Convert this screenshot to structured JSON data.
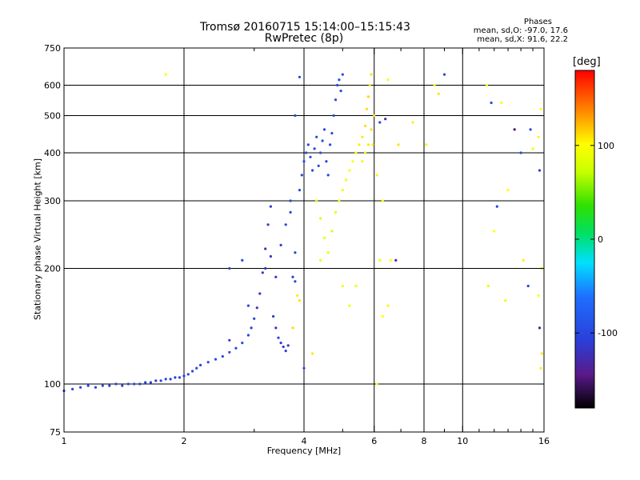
{
  "title": {
    "line1": "Tromsø 20160715 15:14:00–15:15:43",
    "line2": "RwPretec (8p)"
  },
  "phase_info": {
    "heading": "Phases",
    "o_line": "mean, sd,O:  -97.0, 17.6",
    "x_line": "mean, sd,X:  91.6, 22.2"
  },
  "colorbar": {
    "unit": "[deg]",
    "range": [
      -180,
      180
    ],
    "ticks": [
      100,
      0,
      -100
    ],
    "tick_labels": [
      "100",
      "0",
      "-100"
    ]
  },
  "chart_data": {
    "type": "scatter",
    "title": "Tromsø 20160715 15:14:00–15:15:43",
    "subtitle": "RwPretec (8p)",
    "xlabel": "Frequency [MHz]",
    "ylabel": "Stationary phase Virtual Height [km]",
    "xscale": "log",
    "yscale": "log",
    "xlim": [
      1,
      16
    ],
    "ylim": [
      75,
      750
    ],
    "x_ticks": [
      1,
      2,
      4,
      6,
      8,
      10,
      16
    ],
    "x_tick_labels": [
      "1",
      "2",
      "4",
      "6",
      "8",
      "10",
      "16"
    ],
    "x_minor_ticks": [
      3,
      5,
      7,
      9,
      11,
      12,
      13,
      14,
      15
    ],
    "y_ticks": [
      75,
      100,
      200,
      300,
      400,
      500,
      600,
      750
    ],
    "y_tick_labels": [
      "75",
      "100",
      "200",
      "300",
      "400",
      "500",
      "600",
      "750"
    ],
    "grid": true,
    "legend": "colorbar-right",
    "series": [
      {
        "points": [
          [
            1.0,
            96,
            -105
          ],
          [
            1.05,
            97,
            -100
          ],
          [
            1.1,
            98,
            -108
          ],
          [
            1.15,
            99,
            -102
          ],
          [
            1.2,
            98,
            -106
          ],
          [
            1.25,
            99,
            -104
          ],
          [
            1.3,
            99,
            -110
          ],
          [
            1.35,
            100,
            -103
          ],
          [
            1.4,
            99,
            -107
          ],
          [
            1.45,
            100,
            -101
          ],
          [
            1.5,
            100,
            -105
          ],
          [
            1.55,
            100,
            -108
          ],
          [
            1.6,
            101,
            -102
          ],
          [
            1.65,
            101,
            -106
          ],
          [
            1.7,
            102,
            -110
          ],
          [
            1.75,
            102,
            -104
          ],
          [
            1.8,
            103,
            -100
          ],
          [
            1.85,
            103,
            -106
          ],
          [
            1.9,
            104,
            -108
          ],
          [
            1.95,
            104,
            -102
          ],
          [
            2.0,
            105,
            -105
          ],
          [
            2.05,
            106,
            -98
          ],
          [
            2.1,
            108,
            -96
          ],
          [
            2.15,
            110,
            -100
          ],
          [
            2.2,
            112,
            -102
          ],
          [
            2.3,
            114,
            -98
          ],
          [
            2.4,
            116,
            -95
          ],
          [
            2.5,
            118,
            -100
          ],
          [
            2.6,
            121,
            -97
          ],
          [
            2.7,
            124,
            -99
          ],
          [
            2.8,
            128,
            -96
          ],
          [
            2.9,
            134,
            -102
          ],
          [
            2.95,
            140,
            -110
          ],
          [
            3.0,
            148,
            -112
          ],
          [
            3.05,
            158,
            -115
          ],
          [
            3.1,
            172,
            -118
          ],
          [
            3.15,
            195,
            -120
          ],
          [
            3.2,
            225,
            -118
          ],
          [
            3.25,
            260,
            -116
          ],
          [
            3.3,
            290,
            -114
          ],
          [
            3.35,
            150,
            -110
          ],
          [
            3.4,
            140,
            -112
          ],
          [
            3.45,
            132,
            -108
          ],
          [
            3.5,
            128,
            -110
          ],
          [
            3.55,
            125,
            -106
          ],
          [
            3.6,
            122,
            -108
          ],
          [
            3.65,
            126,
            -110
          ],
          [
            3.2,
            200,
            -118
          ],
          [
            3.3,
            215,
            -116
          ],
          [
            3.4,
            190,
            -114
          ],
          [
            3.5,
            230,
            -110
          ],
          [
            3.6,
            260,
            -106
          ],
          [
            3.7,
            280,
            -100
          ],
          [
            3.7,
            300,
            -102
          ],
          [
            3.75,
            190,
            -110
          ],
          [
            3.8,
            185,
            -112
          ],
          [
            3.8,
            220,
            -104
          ],
          [
            3.9,
            320,
            -100
          ],
          [
            3.95,
            350,
            -98
          ],
          [
            4.0,
            380,
            -100
          ],
          [
            4.05,
            400,
            -102
          ],
          [
            4.1,
            420,
            -98
          ],
          [
            4.15,
            390,
            -100
          ],
          [
            4.2,
            360,
            -104
          ],
          [
            4.25,
            410,
            -100
          ],
          [
            4.3,
            440,
            -96
          ],
          [
            4.35,
            370,
            -100
          ],
          [
            4.4,
            400,
            -98
          ],
          [
            4.45,
            430,
            -96
          ],
          [
            4.5,
            460,
            -100
          ],
          [
            4.55,
            380,
            -102
          ],
          [
            4.6,
            350,
            -98
          ],
          [
            4.65,
            420,
            -100
          ],
          [
            4.7,
            450,
            -96
          ],
          [
            4.75,
            500,
            -98
          ],
          [
            4.8,
            550,
            -100
          ],
          [
            4.85,
            600,
            -102
          ],
          [
            4.9,
            620,
            -100
          ],
          [
            4.95,
            580,
            -98
          ],
          [
            5.0,
            640,
            -100
          ],
          [
            4.0,
            110,
            -96
          ],
          [
            4.3,
            300,
            80
          ],
          [
            4.4,
            270,
            85
          ],
          [
            4.5,
            240,
            90
          ],
          [
            4.6,
            220,
            88
          ],
          [
            4.7,
            250,
            82
          ],
          [
            4.8,
            280,
            86
          ],
          [
            4.9,
            300,
            90
          ],
          [
            5.0,
            320,
            92
          ],
          [
            5.1,
            340,
            94
          ],
          [
            5.2,
            360,
            98
          ],
          [
            5.3,
            380,
            100
          ],
          [
            5.4,
            400,
            104
          ],
          [
            5.5,
            420,
            106
          ],
          [
            5.6,
            440,
            108
          ],
          [
            5.7,
            470,
            110
          ],
          [
            5.75,
            520,
            112
          ],
          [
            5.8,
            560,
            114
          ],
          [
            5.85,
            600,
            112
          ],
          [
            5.9,
            640,
            110
          ],
          [
            5.6,
            380,
            104
          ],
          [
            5.7,
            400,
            106
          ],
          [
            5.8,
            420,
            108
          ],
          [
            5.9,
            460,
            110
          ],
          [
            6.0,
            500,
            112
          ],
          [
            5.95,
            420,
            104
          ],
          [
            6.1,
            350,
            104
          ],
          [
            1.8,
            640,
            100
          ],
          [
            6.5,
            620,
            102
          ],
          [
            8.5,
            600,
            104
          ],
          [
            9.0,
            640,
            -100
          ],
          [
            8.7,
            570,
            110
          ],
          [
            11.5,
            600,
            96
          ],
          [
            11.8,
            540,
            -102
          ],
          [
            12.5,
            540,
            102
          ],
          [
            13.5,
            460,
            -150
          ],
          [
            14.8,
            460,
            -100
          ],
          [
            15.5,
            440,
            104
          ],
          [
            15.6,
            360,
            -110
          ],
          [
            15.7,
            520,
            100
          ],
          [
            14.0,
            400,
            -100
          ],
          [
            15.0,
            410,
            96
          ],
          [
            13.0,
            320,
            102
          ],
          [
            12.2,
            290,
            -104
          ],
          [
            11.6,
            180,
            90
          ],
          [
            12.8,
            165,
            92
          ],
          [
            14.6,
            180,
            -100
          ],
          [
            15.8,
            200,
            104
          ],
          [
            15.5,
            170,
            100
          ],
          [
            15.6,
            140,
            -140
          ],
          [
            15.7,
            110,
            104
          ],
          [
            15.8,
            120,
            106
          ],
          [
            14.2,
            210,
            106
          ],
          [
            12.0,
            250,
            100
          ],
          [
            6.3,
            300,
            98
          ],
          [
            6.6,
            210,
            100
          ],
          [
            6.2,
            210,
            92
          ],
          [
            6.8,
            210,
            -130
          ],
          [
            6.5,
            160,
            104
          ],
          [
            6.3,
            150,
            100
          ],
          [
            6.1,
            100,
            104
          ],
          [
            5.4,
            180,
            92
          ],
          [
            5.2,
            160,
            94
          ],
          [
            5.0,
            180,
            96
          ],
          [
            4.4,
            210,
            88
          ],
          [
            3.85,
            170,
            106
          ],
          [
            3.9,
            165,
            110
          ],
          [
            3.75,
            140,
            112
          ],
          [
            4.2,
            120,
            108
          ],
          [
            2.6,
            200,
            -100
          ],
          [
            2.8,
            210,
            -104
          ],
          [
            2.9,
            160,
            -100
          ],
          [
            2.6,
            130,
            -110
          ],
          [
            3.8,
            500,
            -100
          ],
          [
            3.9,
            630,
            -100
          ],
          [
            6.2,
            480,
            -100
          ],
          [
            6.4,
            490,
            -130
          ],
          [
            6.9,
            420,
            110
          ],
          [
            7.5,
            480,
            106
          ],
          [
            8.1,
            420,
            104
          ]
        ]
      }
    ]
  }
}
